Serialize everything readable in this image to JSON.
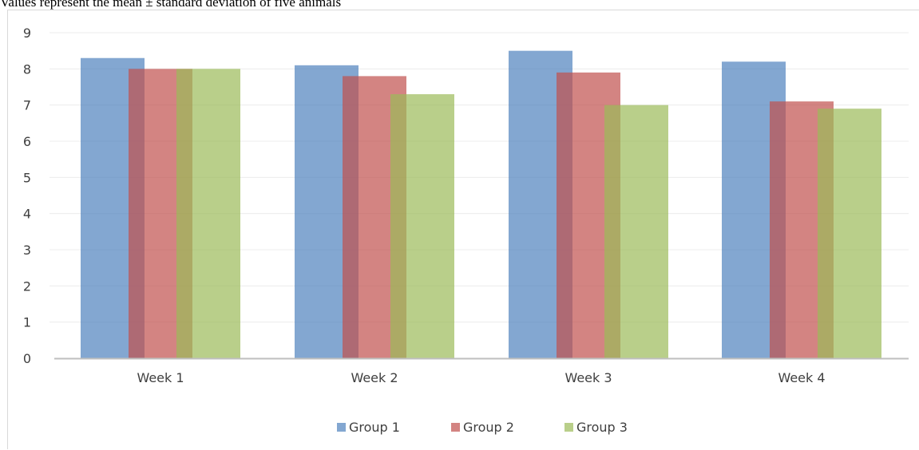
{
  "caption": "Values represent the mean ± standard deviation of five animals",
  "chart_data": {
    "type": "bar",
    "title": "",
    "xlabel": "",
    "ylabel": "",
    "categories": [
      "Week 1",
      "Week 2",
      "Week 3",
      "Week 4"
    ],
    "series": [
      {
        "name": "Group 1",
        "color": "#4f81bd",
        "values": [
          8.3,
          8.1,
          8.5,
          8.2
        ]
      },
      {
        "name": "Group 2",
        "color": "#c0504d",
        "values": [
          8.0,
          7.8,
          7.9,
          7.1
        ]
      },
      {
        "name": "Group 3",
        "color": "#9bbb59",
        "values": [
          8.0,
          7.3,
          7.0,
          6.9
        ]
      }
    ],
    "ylim": [
      0,
      9
    ],
    "yticks": [
      "0",
      "1",
      "2",
      "3",
      "4",
      "5",
      "6",
      "7",
      "8",
      "9"
    ],
    "grid": true,
    "legend": "bottom",
    "bar_overlap": true,
    "bar_opacity": 0.7
  }
}
